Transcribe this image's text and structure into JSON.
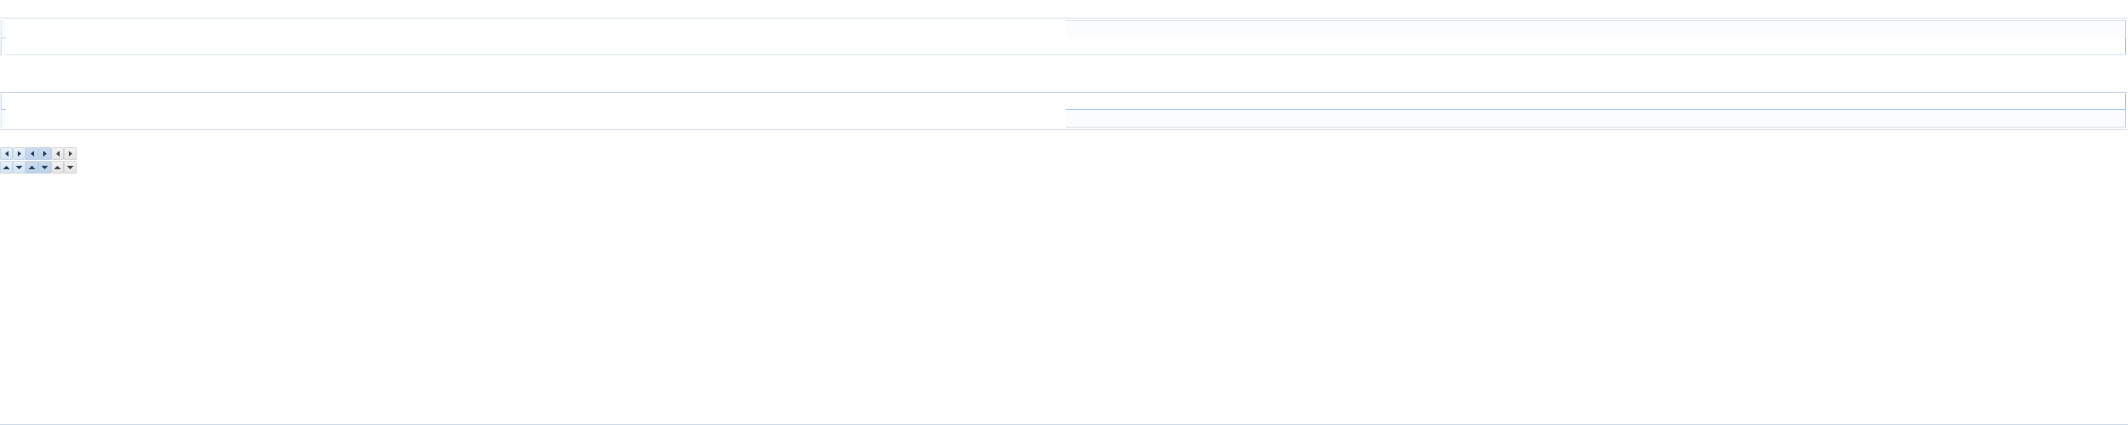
{
  "colors": {
    "border": "#c5d3e0",
    "active_border": "#99c4ef",
    "strip_bg": "#fafcfe",
    "arrow": "#1e3d5e"
  },
  "panels": [
    {
      "name": "tab-panel-top"
    },
    {
      "name": "tab-panel-bottom"
    }
  ],
  "scroll_buttons": {
    "row1": [
      {
        "icon": "arrow-left-icon",
        "state": "normal"
      },
      {
        "icon": "arrow-right-icon",
        "state": "normal"
      },
      {
        "icon": "arrow-left-icon",
        "state": "pressed"
      },
      {
        "icon": "arrow-right-icon",
        "state": "pressed"
      },
      {
        "icon": "arrow-left-icon",
        "state": "disabled"
      },
      {
        "icon": "arrow-right-icon",
        "state": "disabled"
      }
    ],
    "row2": [
      {
        "icon": "arrow-up-icon",
        "state": "normal"
      },
      {
        "icon": "arrow-down-icon",
        "state": "normal"
      },
      {
        "icon": "arrow-up-icon",
        "state": "pressed"
      },
      {
        "icon": "arrow-down-icon",
        "state": "pressed"
      },
      {
        "icon": "arrow-up-icon",
        "state": "disabled"
      },
      {
        "icon": "arrow-down-icon",
        "state": "disabled"
      }
    ]
  }
}
